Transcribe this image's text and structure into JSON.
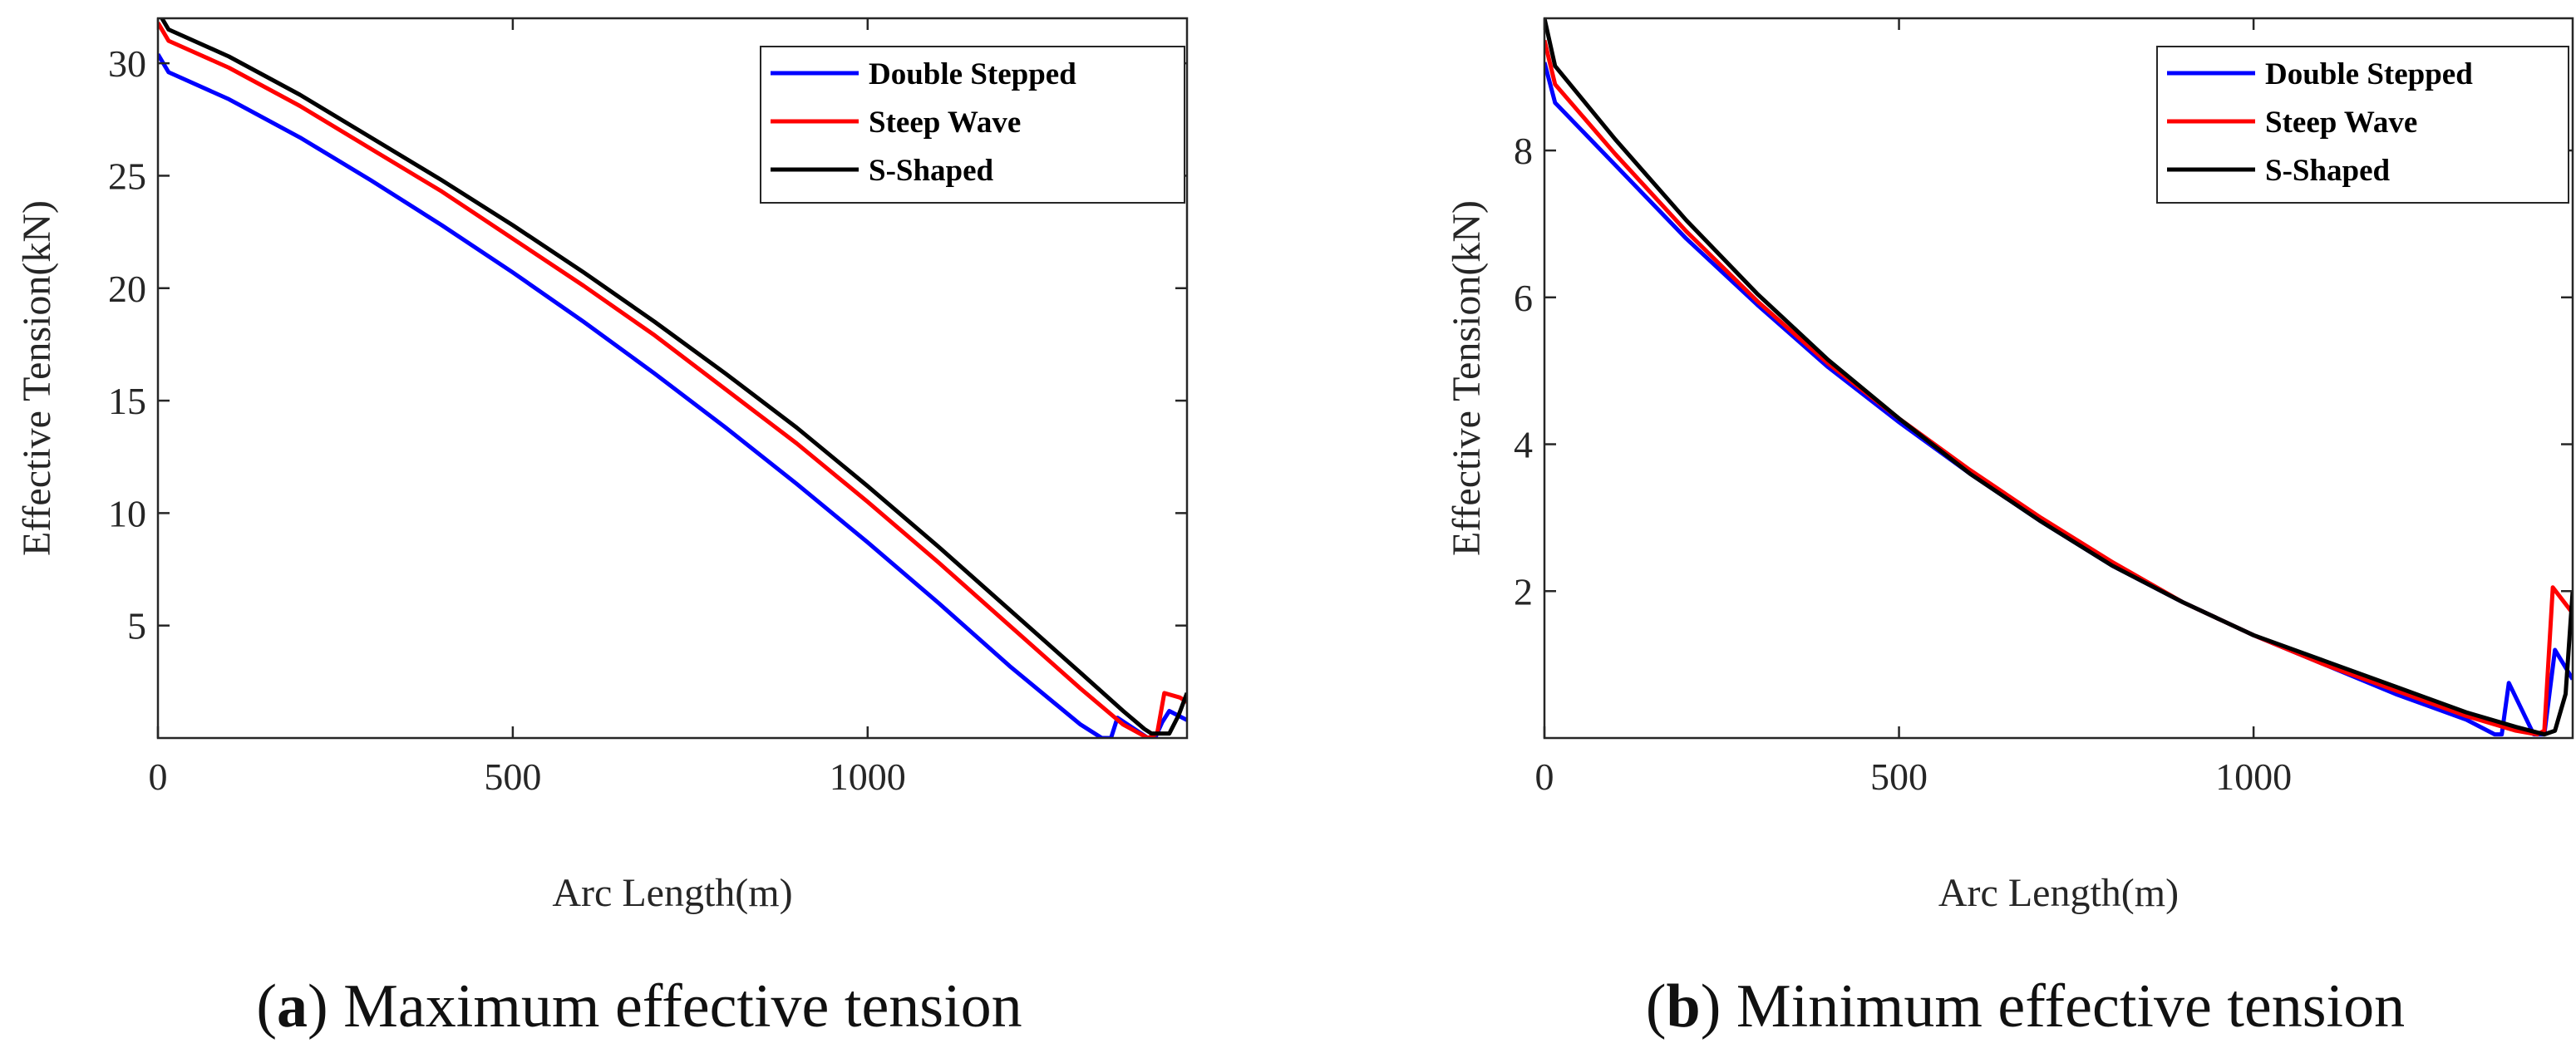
{
  "chart_data": [
    {
      "type": "line",
      "caption": {
        "open": "(",
        "letter": "a",
        "rest": ") Maximum effective tension"
      },
      "xlabel": "Arc Length(m)",
      "ylabel": "Effective Tension(kN)",
      "xlim": [
        0,
        1450
      ],
      "ylim": [
        0,
        32
      ],
      "xticks": [
        0,
        500,
        1000
      ],
      "yticks": [
        5,
        10,
        15,
        20,
        25,
        30
      ],
      "legend_position": "top-right",
      "series": [
        {
          "name": "Double Stepped",
          "color": "#0000ff",
          "x": [
            0,
            15,
            100,
            200,
            300,
            400,
            500,
            600,
            700,
            800,
            900,
            1000,
            1100,
            1200,
            1300,
            1330,
            1343,
            1352,
            1395,
            1405,
            1415,
            1425,
            1450
          ],
          "y": [
            30.4,
            29.6,
            28.4,
            26.7,
            24.8,
            22.8,
            20.7,
            18.5,
            16.2,
            13.8,
            11.3,
            8.7,
            6.0,
            3.2,
            0.6,
            0.0,
            0.0,
            0.9,
            0.0,
            0.0,
            0.7,
            1.2,
            0.8
          ]
        },
        {
          "name": "Steep Wave",
          "color": "#ff0000",
          "x": [
            0,
            15,
            100,
            200,
            300,
            400,
            500,
            600,
            700,
            800,
            900,
            1000,
            1100,
            1200,
            1300,
            1360,
            1395,
            1408,
            1418,
            1440,
            1450
          ],
          "y": [
            31.8,
            31.0,
            29.8,
            28.1,
            26.2,
            24.3,
            22.2,
            20.1,
            17.9,
            15.5,
            13.1,
            10.5,
            7.8,
            5.0,
            2.2,
            0.6,
            0.0,
            0.2,
            2.0,
            1.8,
            1.6
          ]
        },
        {
          "name": "S-Shaped",
          "color": "#000000",
          "x": [
            0,
            15,
            100,
            200,
            300,
            400,
            500,
            600,
            700,
            800,
            900,
            1000,
            1100,
            1200,
            1300,
            1360,
            1390,
            1400,
            1425,
            1438,
            1450
          ],
          "y": [
            32.3,
            31.5,
            30.3,
            28.6,
            26.7,
            24.8,
            22.8,
            20.7,
            18.5,
            16.2,
            13.8,
            11.2,
            8.5,
            5.7,
            2.9,
            1.2,
            0.4,
            0.2,
            0.2,
            1.0,
            2.0
          ]
        }
      ]
    },
    {
      "type": "line",
      "caption": {
        "open": "(",
        "letter": "b",
        "rest": ") Minimum effective tension"
      },
      "xlabel": "Arc Length(m)",
      "ylabel": "Effective Tension(kN)",
      "xlim": [
        0,
        1450
      ],
      "ylim": [
        0,
        9.8
      ],
      "xticks": [
        0,
        500,
        1000
      ],
      "yticks": [
        2,
        4,
        6,
        8
      ],
      "legend_position": "top-right",
      "series": [
        {
          "name": "Double Stepped",
          "color": "#0000ff",
          "x": [
            0,
            15,
            100,
            200,
            300,
            400,
            500,
            600,
            700,
            800,
            900,
            1000,
            1100,
            1200,
            1300,
            1340,
            1350,
            1360,
            1395,
            1410,
            1425,
            1450
          ],
          "y": [
            9.2,
            8.65,
            7.8,
            6.8,
            5.9,
            5.05,
            4.3,
            3.6,
            2.95,
            2.35,
            1.85,
            1.4,
            1.0,
            0.6,
            0.25,
            0.05,
            0.05,
            0.75,
            0.05,
            0.05,
            1.2,
            0.8
          ]
        },
        {
          "name": "Steep Wave",
          "color": "#ff0000",
          "x": [
            0,
            15,
            100,
            200,
            300,
            400,
            500,
            600,
            700,
            800,
            900,
            1000,
            1100,
            1200,
            1300,
            1370,
            1400,
            1410,
            1422,
            1450
          ],
          "y": [
            9.5,
            8.9,
            7.95,
            6.9,
            5.95,
            5.1,
            4.35,
            3.65,
            3.0,
            2.4,
            1.85,
            1.4,
            1.0,
            0.65,
            0.3,
            0.1,
            0.05,
            0.1,
            2.05,
            1.7
          ]
        },
        {
          "name": "S-Shaped",
          "color": "#000000",
          "x": [
            0,
            15,
            100,
            200,
            300,
            400,
            500,
            600,
            700,
            800,
            900,
            1000,
            1100,
            1200,
            1300,
            1370,
            1410,
            1425,
            1440,
            1450
          ],
          "y": [
            9.8,
            9.15,
            8.15,
            7.05,
            6.05,
            5.15,
            4.35,
            3.6,
            2.95,
            2.35,
            1.85,
            1.4,
            1.05,
            0.7,
            0.35,
            0.15,
            0.05,
            0.1,
            0.6,
            2.0
          ]
        }
      ]
    }
  ]
}
